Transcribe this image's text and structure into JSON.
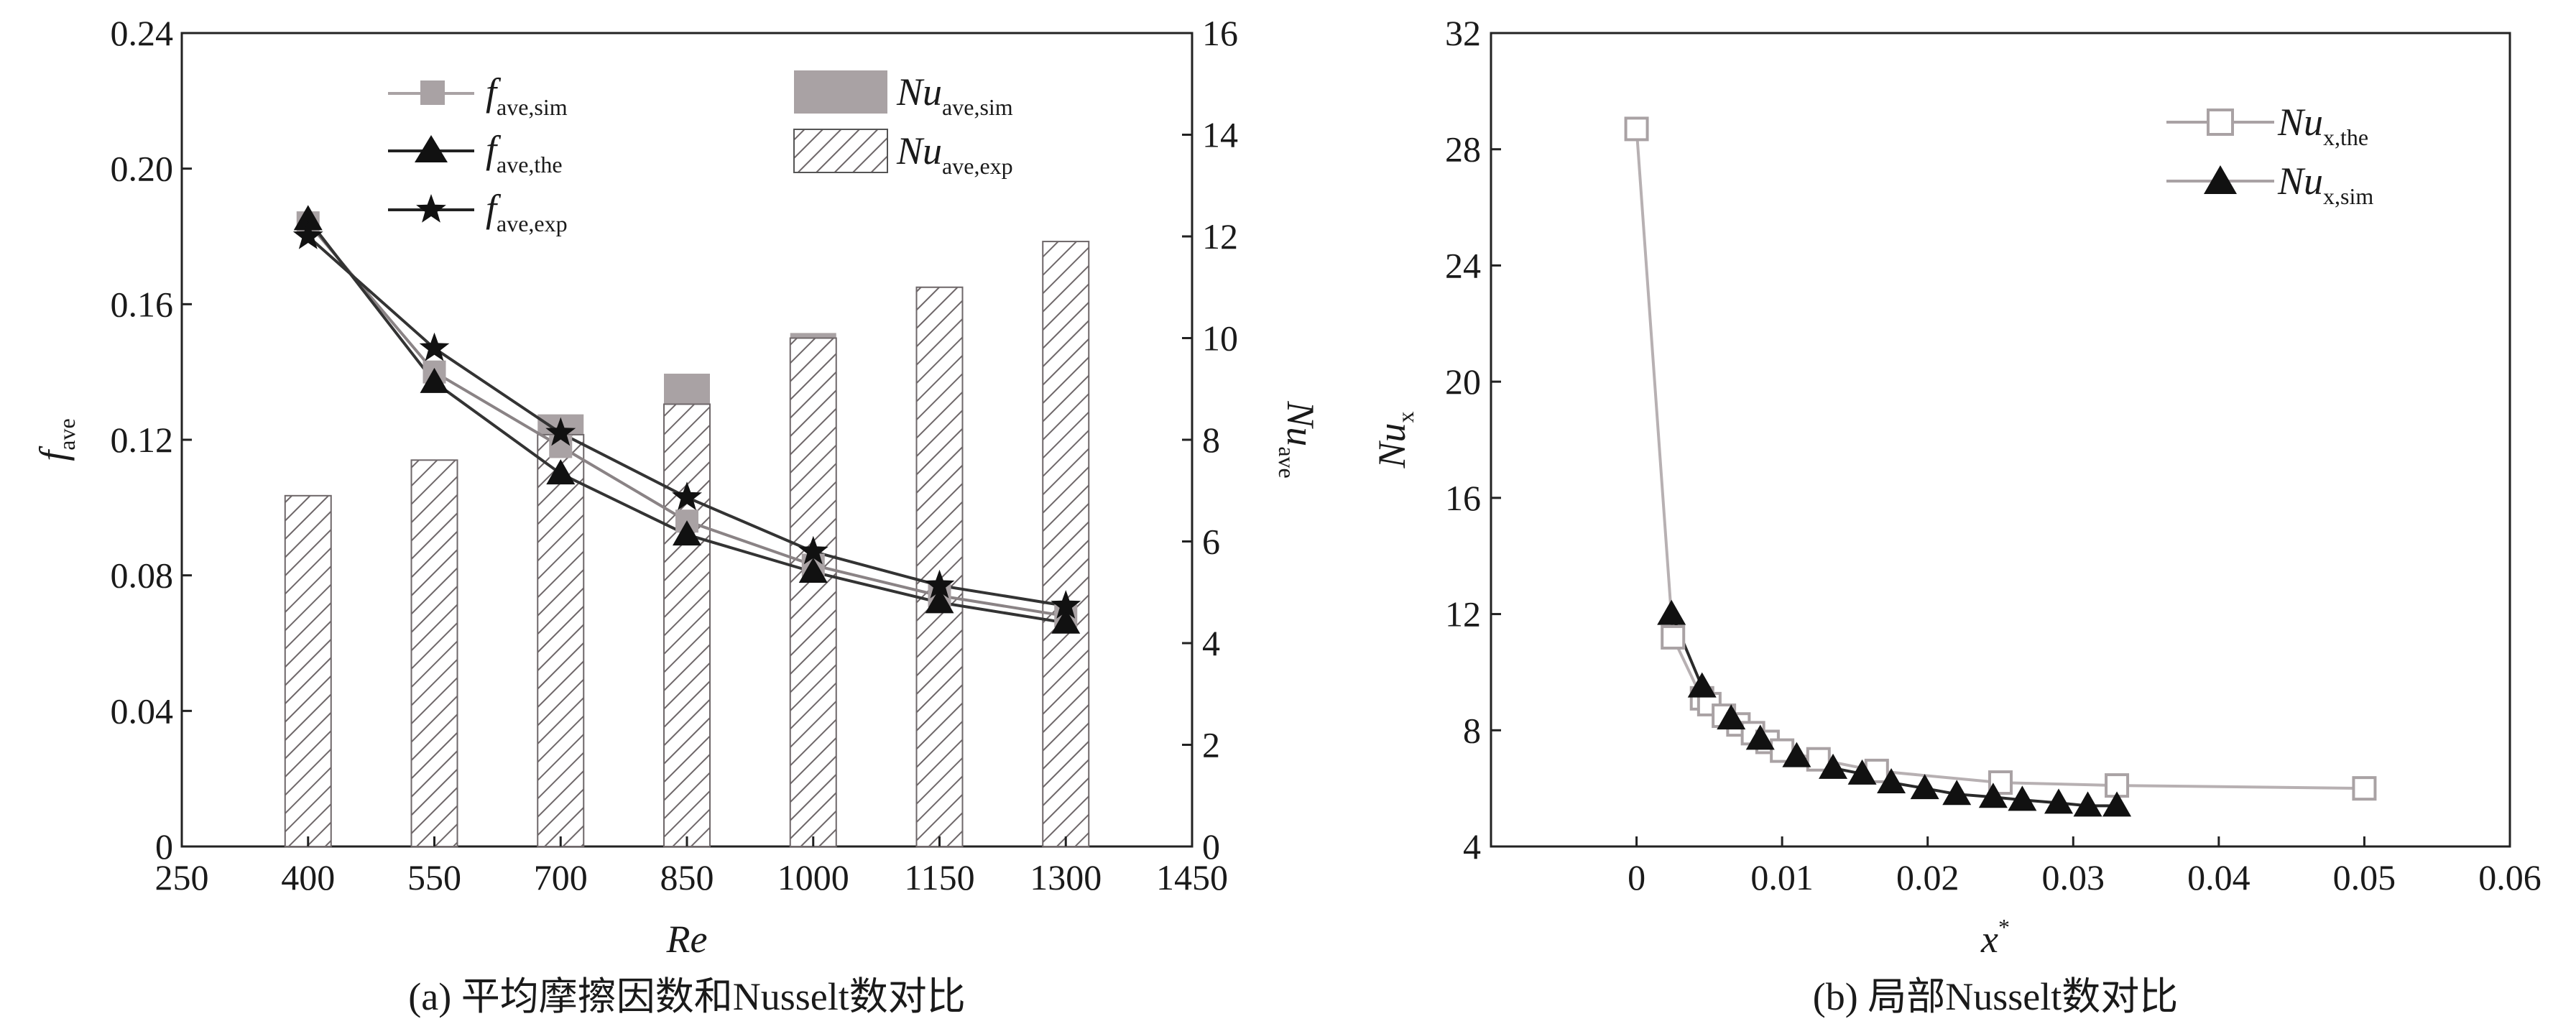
{
  "chart_data": [
    {
      "type": "bar+line",
      "caption": "(a) 平均摩擦因数和Nusselt数对比",
      "xlabel": "Re",
      "x_ticks": [
        250,
        400,
        550,
        700,
        850,
        1000,
        1150,
        1300,
        1450
      ],
      "xlim": [
        250,
        1450
      ],
      "ylabel_left": {
        "main": "f",
        "sub": "ave"
      },
      "ylim_left": [
        0,
        0.24
      ],
      "y_ticks_left": [
        "0",
        "0.04",
        "0.08",
        "0.12",
        "0.16",
        "0.20",
        "0.24"
      ],
      "y_ticks_left_values": [
        0,
        0.04,
        0.08,
        0.12,
        0.16,
        0.2,
        0.24
      ],
      "ylabel_right": {
        "main": "Nu",
        "sub": "ave"
      },
      "ylim_right": [
        0,
        16
      ],
      "y_ticks_right": [
        "0",
        "2",
        "4",
        "6",
        "8",
        "10",
        "12",
        "14",
        "16"
      ],
      "y_ticks_right_values": [
        0,
        2,
        4,
        6,
        8,
        10,
        12,
        14,
        16
      ],
      "categories": [
        400,
        550,
        700,
        850,
        1000,
        1150,
        1300
      ],
      "bar_series": [
        {
          "name": "Nu",
          "sub": "ave,sim",
          "style": "solid",
          "color": "#a9a2a4",
          "values": [
            6.7,
            7.6,
            8.5,
            9.3,
            10.1,
            10.9,
            11.7
          ]
        },
        {
          "name": "Nu",
          "sub": "ave,exp",
          "style": "hatched",
          "color": "#8f8789",
          "values": [
            6.9,
            7.6,
            8.1,
            8.7,
            10.0,
            11.0,
            11.9
          ]
        }
      ],
      "line_series": [
        {
          "name": "f",
          "sub": "ave,sim",
          "marker": "square",
          "color": "#a9a2a4",
          "values": [
            0.184,
            0.14,
            0.118,
            0.096,
            0.083,
            0.074,
            0.068
          ]
        },
        {
          "name": "f",
          "sub": "ave,the",
          "marker": "triangle",
          "color": "#222222",
          "values": [
            0.185,
            0.137,
            0.11,
            0.092,
            0.081,
            0.072,
            0.066
          ]
        },
        {
          "name": "f",
          "sub": "ave,exp",
          "marker": "star",
          "color": "#222222",
          "values": [
            0.18,
            0.147,
            0.122,
            0.103,
            0.087,
            0.077,
            0.071
          ]
        }
      ]
    },
    {
      "type": "line",
      "caption": "(b) 局部Nusselt数对比",
      "xlabel": {
        "main": "x",
        "sup": "*"
      },
      "ylabel": {
        "main": "Nu",
        "sub": "x"
      },
      "xlim": [
        -0.01,
        0.06
      ],
      "x_ticks": [
        "0",
        "0.01",
        "0.02",
        "0.03",
        "0.04",
        "0.05",
        "0.06"
      ],
      "x_ticks_values": [
        0,
        0.01,
        0.02,
        0.03,
        0.04,
        0.05,
        0.06
      ],
      "ylim": [
        4,
        32
      ],
      "y_ticks": [
        "4",
        "8",
        "12",
        "16",
        "20",
        "24",
        "28",
        "32"
      ],
      "y_ticks_values": [
        4,
        8,
        12,
        16,
        20,
        24,
        28,
        32
      ],
      "series": [
        {
          "name": "Nu",
          "sub": "x,the",
          "marker": "square-open",
          "color": "#a9a2a4",
          "x": [
            0,
            0.0025,
            0.0045,
            0.005,
            0.006,
            0.007,
            0.008,
            0.009,
            0.01,
            0.0125,
            0.0165,
            0.025,
            0.033,
            0.05
          ],
          "y": [
            28.7,
            11.2,
            9.1,
            8.9,
            8.5,
            8.2,
            7.9,
            7.6,
            7.3,
            7.0,
            6.6,
            6.2,
            6.1,
            6.0
          ]
        },
        {
          "name": "Nu",
          "sub": "x,sim",
          "marker": "triangle",
          "color": "#222222",
          "x": [
            0.0024,
            0.0045,
            0.0065,
            0.0085,
            0.011,
            0.0135,
            0.0155,
            0.0175,
            0.0198,
            0.022,
            0.0245,
            0.0265,
            0.029,
            0.031,
            0.033
          ],
          "y": [
            12.0,
            9.5,
            8.4,
            7.7,
            7.1,
            6.7,
            6.5,
            6.2,
            6.0,
            5.8,
            5.7,
            5.6,
            5.5,
            5.4,
            5.4
          ]
        }
      ]
    }
  ]
}
